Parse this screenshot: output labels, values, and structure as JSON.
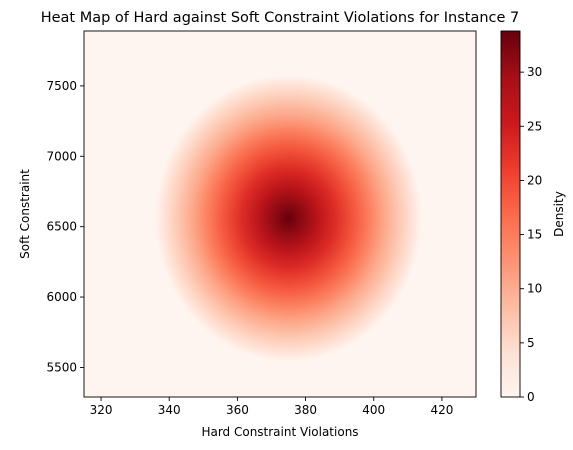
{
  "chart_data": {
    "type": "heatmap",
    "title": "Heat Map of Hard against Soft Constraint Violations for Instance 7",
    "xlabel": "Hard Constraint Violations",
    "ylabel": "Soft Constraint",
    "xlim": [
      315,
      430
    ],
    "ylim": [
      5290,
      7890
    ],
    "x_ticks": [
      320,
      340,
      360,
      380,
      400,
      420
    ],
    "y_ticks": [
      5500,
      6000,
      6500,
      7000,
      7500
    ],
    "density_peak": {
      "x": 375,
      "y": 6560,
      "value": 34
    },
    "density_spread": {
      "x_sd": 11.5,
      "y_sd": 300
    },
    "colormap": "Reds",
    "colorbar": {
      "label": "Density",
      "range": [
        0,
        33.8
      ],
      "ticks": [
        0,
        5,
        10,
        15,
        20,
        25,
        30
      ]
    },
    "grid": false,
    "legend": "none"
  }
}
